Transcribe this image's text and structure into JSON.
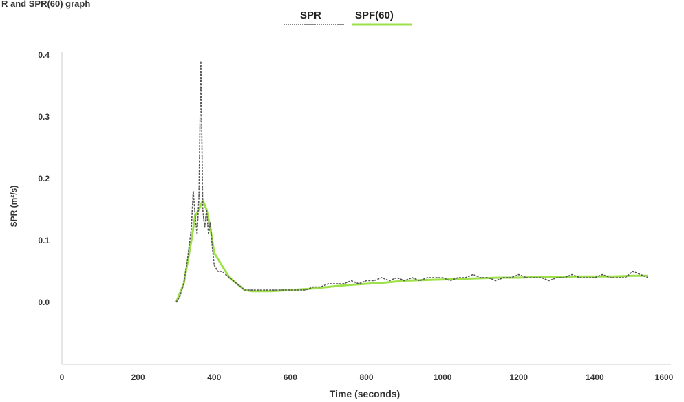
{
  "chart_data": {
    "type": "line",
    "title": "R and SPR(60) graph",
    "xlabel": "Time (seconds)",
    "ylabel": "SPR (m²/s)",
    "xlim": [
      0,
      1600
    ],
    "ylim": [
      -0.1,
      0.4
    ],
    "x_ticks": [
      "0",
      "200",
      "400",
      "600",
      "800",
      "1000",
      "1200",
      "1400",
      "1600"
    ],
    "y_ticks": [
      "0.0",
      "0.1",
      "0.2",
      "0.3",
      "0.4"
    ],
    "grid": false,
    "legend_position": "top-center",
    "series": [
      {
        "name": "SPR",
        "color": "#555555",
        "x": [
          300,
          310,
          320,
          330,
          340,
          345,
          350,
          355,
          360,
          365,
          370,
          375,
          380,
          385,
          390,
          395,
          400,
          410,
          420,
          440,
          460,
          480,
          500,
          520,
          540,
          560,
          580,
          600,
          620,
          640,
          660,
          680,
          700,
          720,
          740,
          760,
          780,
          800,
          820,
          840,
          860,
          880,
          900,
          920,
          940,
          960,
          980,
          1000,
          1020,
          1040,
          1060,
          1080,
          1100,
          1120,
          1140,
          1160,
          1180,
          1200,
          1220,
          1240,
          1260,
          1280,
          1300,
          1320,
          1340,
          1360,
          1380,
          1400,
          1420,
          1440,
          1460,
          1480,
          1500,
          1520,
          1540
        ],
        "y": [
          0.0,
          0.01,
          0.03,
          0.07,
          0.12,
          0.18,
          0.14,
          0.11,
          0.17,
          0.39,
          0.15,
          0.12,
          0.15,
          0.11,
          0.13,
          0.09,
          0.06,
          0.05,
          0.05,
          0.04,
          0.03,
          0.02,
          0.02,
          0.02,
          0.02,
          0.02,
          0.02,
          0.02,
          0.02,
          0.02,
          0.025,
          0.025,
          0.03,
          0.03,
          0.03,
          0.035,
          0.03,
          0.035,
          0.035,
          0.04,
          0.035,
          0.04,
          0.035,
          0.04,
          0.035,
          0.04,
          0.04,
          0.04,
          0.035,
          0.04,
          0.04,
          0.045,
          0.04,
          0.04,
          0.035,
          0.04,
          0.04,
          0.045,
          0.04,
          0.04,
          0.04,
          0.035,
          0.04,
          0.04,
          0.045,
          0.04,
          0.04,
          0.04,
          0.045,
          0.04,
          0.04,
          0.04,
          0.05,
          0.045,
          0.04
        ]
      },
      {
        "name": "SPF(60)",
        "color": "#9ee04a",
        "x": [
          300,
          320,
          340,
          350,
          360,
          370,
          380,
          390,
          400,
          420,
          440,
          460,
          480,
          500,
          550,
          600,
          650,
          700,
          750,
          800,
          850,
          900,
          950,
          1000,
          1050,
          1100,
          1150,
          1200,
          1250,
          1300,
          1350,
          1400,
          1450,
          1500,
          1540
        ],
        "y": [
          0.0,
          0.03,
          0.1,
          0.14,
          0.15,
          0.165,
          0.15,
          0.12,
          0.08,
          0.06,
          0.04,
          0.03,
          0.02,
          0.018,
          0.018,
          0.02,
          0.022,
          0.025,
          0.028,
          0.03,
          0.032,
          0.035,
          0.036,
          0.037,
          0.038,
          0.039,
          0.04,
          0.04,
          0.041,
          0.041,
          0.042,
          0.042,
          0.042,
          0.043,
          0.043
        ]
      }
    ]
  }
}
